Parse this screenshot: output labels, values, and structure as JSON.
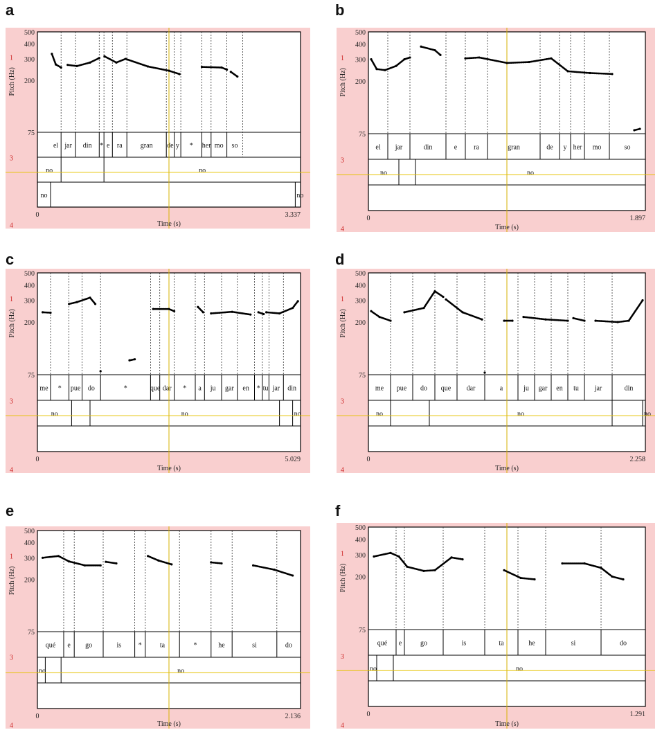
{
  "chart_data": [
    {
      "type": "line",
      "panel_label": "a",
      "ylabel": "Pitch (Hz)",
      "xlabel": "Time (s)",
      "y_ticks": [
        500,
        400,
        300,
        200,
        75
      ],
      "x_range": [
        0,
        3.337
      ],
      "x_tick_labels": [
        "0",
        "3.337"
      ],
      "side_labels": [
        "1",
        "3",
        "4"
      ],
      "syllables": [
        {
          "text": "el",
          "start": 0.05,
          "end": 0.09
        },
        {
          "text": "jar",
          "start": 0.09,
          "end": 0.145
        },
        {
          "text": "din",
          "start": 0.145,
          "end": 0.235
        },
        {
          "text": "*",
          "start": 0.235,
          "end": 0.253
        },
        {
          "text": "e",
          "start": 0.253,
          "end": 0.285
        },
        {
          "text": "ra",
          "start": 0.285,
          "end": 0.34
        },
        {
          "text": "gran",
          "start": 0.34,
          "end": 0.49
        },
        {
          "text": "de",
          "start": 0.49,
          "end": 0.52
        },
        {
          "text": "y",
          "start": 0.52,
          "end": 0.545
        },
        {
          "text": "*",
          "start": 0.545,
          "end": 0.625
        },
        {
          "text": "her",
          "start": 0.625,
          "end": 0.66
        },
        {
          "text": "mo",
          "start": 0.66,
          "end": 0.72
        },
        {
          "text": "so",
          "start": 0.72,
          "end": 0.78
        }
      ],
      "tier2": [
        {
          "text": "no",
          "start": 0.0,
          "end": 0.09
        },
        {
          "text": "",
          "start": 0.09,
          "end": 0.253
        },
        {
          "text": "no",
          "start": 0.253,
          "end": 1.0
        }
      ],
      "tier3": [
        {
          "text": "no",
          "start": 0.0,
          "end": 0.05
        },
        {
          "text": "",
          "start": 0.05,
          "end": 0.98
        },
        {
          "text": "no",
          "start": 0.98,
          "end": 1.0
        }
      ],
      "series": [
        {
          "x": [
            0.055,
            0.07,
            0.09
          ],
          "y": [
            330,
            270,
            255
          ]
        },
        {
          "x": [
            0.115,
            0.15,
            0.2,
            0.235
          ],
          "y": [
            268,
            262,
            280,
            305
          ]
        },
        {
          "x": [
            0.255,
            0.3,
            0.335,
            0.42,
            0.5,
            0.54
          ],
          "y": [
            315,
            280,
            300,
            260,
            240,
            225
          ]
        },
        {
          "x": [
            0.625,
            0.7,
            0.72
          ],
          "y": [
            258,
            255,
            245
          ]
        },
        {
          "x": [
            0.735,
            0.76
          ],
          "y": [
            235,
            215
          ]
        }
      ]
    },
    {
      "type": "line",
      "panel_label": "b",
      "ylabel": "Pitch (Hz)",
      "xlabel": "Time (s)",
      "y_ticks": [
        500,
        400,
        300,
        200,
        75
      ],
      "x_range": [
        0,
        1.897
      ],
      "x_tick_labels": [
        "0",
        "1.897"
      ],
      "side_labels": [
        "1",
        "3",
        "4"
      ],
      "syllables": [
        {
          "text": "el",
          "start": 0.0,
          "end": 0.07
        },
        {
          "text": "jar",
          "start": 0.07,
          "end": 0.15
        },
        {
          "text": "din",
          "start": 0.15,
          "end": 0.28
        },
        {
          "text": "e",
          "start": 0.28,
          "end": 0.35
        },
        {
          "text": "ra",
          "start": 0.35,
          "end": 0.43
        },
        {
          "text": "gran",
          "start": 0.43,
          "end": 0.62
        },
        {
          "text": "de",
          "start": 0.62,
          "end": 0.69
        },
        {
          "text": "y",
          "start": 0.69,
          "end": 0.73
        },
        {
          "text": "her",
          "start": 0.73,
          "end": 0.78
        },
        {
          "text": "mo",
          "start": 0.78,
          "end": 0.87
        },
        {
          "text": "so",
          "start": 0.87,
          "end": 1.0
        }
      ],
      "tier2": [
        {
          "text": "no",
          "start": 0.0,
          "end": 0.11
        },
        {
          "text": "",
          "start": 0.11,
          "end": 0.17
        },
        {
          "text": "no",
          "start": 0.17,
          "end": 1.0
        }
      ],
      "tier3": [],
      "series": [
        {
          "x": [
            0.01,
            0.03,
            0.06,
            0.1,
            0.13,
            0.15
          ],
          "y": [
            300,
            250,
            245,
            265,
            300,
            310
          ]
        },
        {
          "x": [
            0.19,
            0.24,
            0.26
          ],
          "y": [
            380,
            355,
            325
          ]
        },
        {
          "x": [
            0.35,
            0.4,
            0.5,
            0.58,
            0.66,
            0.72,
            0.8,
            0.88
          ],
          "y": [
            305,
            310,
            280,
            285,
            305,
            240,
            232,
            228
          ]
        },
        {
          "x": [
            0.96,
            0.98
          ],
          "y": [
            80,
            82
          ]
        }
      ]
    },
    {
      "type": "line",
      "panel_label": "c",
      "ylabel": "Pitch (Hz)",
      "xlabel": "Time (s)",
      "y_ticks": [
        500,
        400,
        300,
        200,
        75
      ],
      "x_range": [
        0,
        5.029
      ],
      "x_tick_labels": [
        "0",
        "5.029"
      ],
      "side_labels": [
        "1",
        "3",
        "4"
      ],
      "syllables": [
        {
          "text": "me",
          "start": 0.0,
          "end": 0.05
        },
        {
          "text": "*",
          "start": 0.05,
          "end": 0.12
        },
        {
          "text": "pue",
          "start": 0.12,
          "end": 0.17
        },
        {
          "text": "do",
          "start": 0.17,
          "end": 0.24
        },
        {
          "text": "*",
          "start": 0.24,
          "end": 0.43
        },
        {
          "text": "que",
          "start": 0.43,
          "end": 0.465
        },
        {
          "text": "dar",
          "start": 0.465,
          "end": 0.52
        },
        {
          "text": "*",
          "start": 0.52,
          "end": 0.6
        },
        {
          "text": "a",
          "start": 0.6,
          "end": 0.635
        },
        {
          "text": "ju",
          "start": 0.635,
          "end": 0.7
        },
        {
          "text": "gar",
          "start": 0.7,
          "end": 0.76
        },
        {
          "text": "en",
          "start": 0.76,
          "end": 0.825
        },
        {
          "text": "*",
          "start": 0.825,
          "end": 0.855
        },
        {
          "text": "tu",
          "start": 0.855,
          "end": 0.88
        },
        {
          "text": "jar",
          "start": 0.88,
          "end": 0.935
        },
        {
          "text": "din",
          "start": 0.935,
          "end": 1.0
        }
      ],
      "tier2": [
        {
          "text": "no",
          "start": 0.0,
          "end": 0.13
        },
        {
          "text": "",
          "start": 0.13,
          "end": 0.2
        },
        {
          "text": "no",
          "start": 0.2,
          "end": 0.92
        },
        {
          "text": "",
          "start": 0.92,
          "end": 0.97
        },
        {
          "text": "no",
          "start": 0.97,
          "end": 1.0
        }
      ],
      "tier3": [],
      "series": [
        {
          "x": [
            0.02,
            0.05
          ],
          "y": [
            240,
            238
          ]
        },
        {
          "x": [
            0.12,
            0.15,
            0.2,
            0.22
          ],
          "y": [
            280,
            290,
            315,
            280
          ]
        },
        {
          "x": [
            0.24
          ],
          "y": [
            80
          ]
        },
        {
          "x": [
            0.35,
            0.37
          ],
          "y": [
            98,
            100
          ]
        },
        {
          "x": [
            0.44,
            0.5,
            0.52
          ],
          "y": [
            255,
            255,
            245
          ]
        },
        {
          "x": [
            0.61,
            0.63
          ],
          "y": [
            265,
            240
          ]
        },
        {
          "x": [
            0.66,
            0.74,
            0.81
          ],
          "y": [
            235,
            242,
            230
          ]
        },
        {
          "x": [
            0.84,
            0.86
          ],
          "y": [
            240,
            232
          ]
        },
        {
          "x": [
            0.87,
            0.92,
            0.97,
            0.99
          ],
          "y": [
            240,
            235,
            260,
            295
          ]
        }
      ]
    },
    {
      "type": "line",
      "panel_label": "d",
      "ylabel": "Pitch (Hz)",
      "xlabel": "Time (s)",
      "y_ticks": [
        500,
        400,
        300,
        200,
        75
      ],
      "x_range": [
        0,
        2.258
      ],
      "x_tick_labels": [
        "0",
        "2.258"
      ],
      "side_labels": [
        "1",
        "3",
        "4"
      ],
      "syllables": [
        {
          "text": "me",
          "start": 0.0,
          "end": 0.08
        },
        {
          "text": "pue",
          "start": 0.08,
          "end": 0.16
        },
        {
          "text": "do",
          "start": 0.16,
          "end": 0.24
        },
        {
          "text": "que",
          "start": 0.24,
          "end": 0.32
        },
        {
          "text": "dar",
          "start": 0.32,
          "end": 0.42
        },
        {
          "text": "a",
          "start": 0.42,
          "end": 0.54
        },
        {
          "text": "ju",
          "start": 0.54,
          "end": 0.6
        },
        {
          "text": "gar",
          "start": 0.6,
          "end": 0.66
        },
        {
          "text": "en",
          "start": 0.66,
          "end": 0.72
        },
        {
          "text": "tu",
          "start": 0.72,
          "end": 0.78
        },
        {
          "text": "jar",
          "start": 0.78,
          "end": 0.88
        },
        {
          "text": "din",
          "start": 0.88,
          "end": 1.0
        }
      ],
      "tier2": [
        {
          "text": "no",
          "start": 0.0,
          "end": 0.08
        },
        {
          "text": "",
          "start": 0.08,
          "end": 0.22
        },
        {
          "text": "no",
          "start": 0.22,
          "end": 0.88
        },
        {
          "text": "",
          "start": 0.88,
          "end": 0.99
        },
        {
          "text": "no",
          "start": 0.99,
          "end": 1.0
        }
      ],
      "tier3": [],
      "series": [
        {
          "x": [
            0.01,
            0.04,
            0.08
          ],
          "y": [
            245,
            220,
            205
          ]
        },
        {
          "x": [
            0.13,
            0.2,
            0.24,
            0.27
          ],
          "y": [
            240,
            260,
            355,
            320
          ]
        },
        {
          "x": [
            0.28,
            0.34,
            0.41
          ],
          "y": [
            305,
            240,
            210
          ]
        },
        {
          "x": [
            0.42
          ],
          "y": [
            78
          ]
        },
        {
          "x": [
            0.49,
            0.52
          ],
          "y": [
            205,
            205
          ]
        },
        {
          "x": [
            0.56,
            0.64,
            0.72
          ],
          "y": [
            220,
            210,
            205
          ]
        },
        {
          "x": [
            0.74,
            0.78
          ],
          "y": [
            215,
            205
          ]
        },
        {
          "x": [
            0.82,
            0.9,
            0.94,
            0.99
          ],
          "y": [
            205,
            200,
            205,
            300
          ]
        }
      ]
    },
    {
      "type": "line",
      "panel_label": "e",
      "ylabel": "Pitch (Hz)",
      "xlabel": "Time (s)",
      "y_ticks": [
        500,
        400,
        300,
        200,
        75
      ],
      "x_range": [
        0,
        2.136
      ],
      "x_tick_labels": [
        "0",
        "2.136"
      ],
      "side_labels": [
        "1",
        "3",
        "4"
      ],
      "syllables": [
        {
          "text": "qué",
          "start": 0.0,
          "end": 0.1
        },
        {
          "text": "e",
          "start": 0.1,
          "end": 0.14
        },
        {
          "text": "go",
          "start": 0.14,
          "end": 0.25
        },
        {
          "text": "is",
          "start": 0.25,
          "end": 0.37
        },
        {
          "text": "*",
          "start": 0.37,
          "end": 0.41
        },
        {
          "text": "ta",
          "start": 0.41,
          "end": 0.54
        },
        {
          "text": "*",
          "start": 0.54,
          "end": 0.66
        },
        {
          "text": "he",
          "start": 0.66,
          "end": 0.74
        },
        {
          "text": "si",
          "start": 0.74,
          "end": 0.91
        },
        {
          "text": "do",
          "start": 0.91,
          "end": 1.0
        }
      ],
      "tier2": [
        {
          "text": "no",
          "start": 0.0,
          "end": 0.03
        },
        {
          "text": "",
          "start": 0.03,
          "end": 0.09
        },
        {
          "text": "no",
          "start": 0.09,
          "end": 1.0
        }
      ],
      "tier3": [],
      "series": [
        {
          "x": [
            0.02,
            0.08,
            0.12,
            0.18,
            0.24
          ],
          "y": [
            300,
            310,
            280,
            260,
            260
          ]
        },
        {
          "x": [
            0.26,
            0.3
          ],
          "y": [
            278,
            270
          ]
        },
        {
          "x": [
            0.42,
            0.46,
            0.51
          ],
          "y": [
            310,
            285,
            265
          ]
        },
        {
          "x": [
            0.66,
            0.7
          ],
          "y": [
            275,
            270
          ]
        },
        {
          "x": [
            0.82,
            0.9,
            0.97
          ],
          "y": [
            260,
            240,
            215
          ]
        }
      ]
    },
    {
      "type": "line",
      "panel_label": "f",
      "ylabel": "Pitch (Hz)",
      "xlabel": "Time (s)",
      "y_ticks": [
        500,
        400,
        300,
        200,
        75
      ],
      "x_range": [
        0,
        1.291
      ],
      "x_tick_labels": [
        "0",
        "1.291"
      ],
      "side_labels": [
        "1",
        "3",
        "4"
      ],
      "syllables": [
        {
          "text": "qué",
          "start": 0.0,
          "end": 0.1
        },
        {
          "text": "e",
          "start": 0.1,
          "end": 0.13
        },
        {
          "text": "go",
          "start": 0.13,
          "end": 0.27
        },
        {
          "text": "is",
          "start": 0.27,
          "end": 0.42
        },
        {
          "text": "ta",
          "start": 0.42,
          "end": 0.54
        },
        {
          "text": "he",
          "start": 0.54,
          "end": 0.64
        },
        {
          "text": "si",
          "start": 0.64,
          "end": 0.84
        },
        {
          "text": "do",
          "start": 0.84,
          "end": 1.0
        }
      ],
      "tier2": [
        {
          "text": "no",
          "start": 0.0,
          "end": 0.03
        },
        {
          "text": "",
          "start": 0.03,
          "end": 0.09
        },
        {
          "text": "no",
          "start": 0.09,
          "end": 1.0
        }
      ],
      "tier3": [],
      "series": [
        {
          "x": [
            0.02,
            0.08,
            0.11,
            0.14,
            0.2,
            0.24,
            0.3,
            0.34
          ],
          "y": [
            290,
            310,
            290,
            240,
            222,
            225,
            285,
            275
          ]
        },
        {
          "x": [
            0.49,
            0.55,
            0.6
          ],
          "y": [
            225,
            195,
            190
          ]
        },
        {
          "x": [
            0.7,
            0.78,
            0.84,
            0.88,
            0.92
          ],
          "y": [
            255,
            255,
            235,
            200,
            190
          ]
        }
      ]
    }
  ]
}
